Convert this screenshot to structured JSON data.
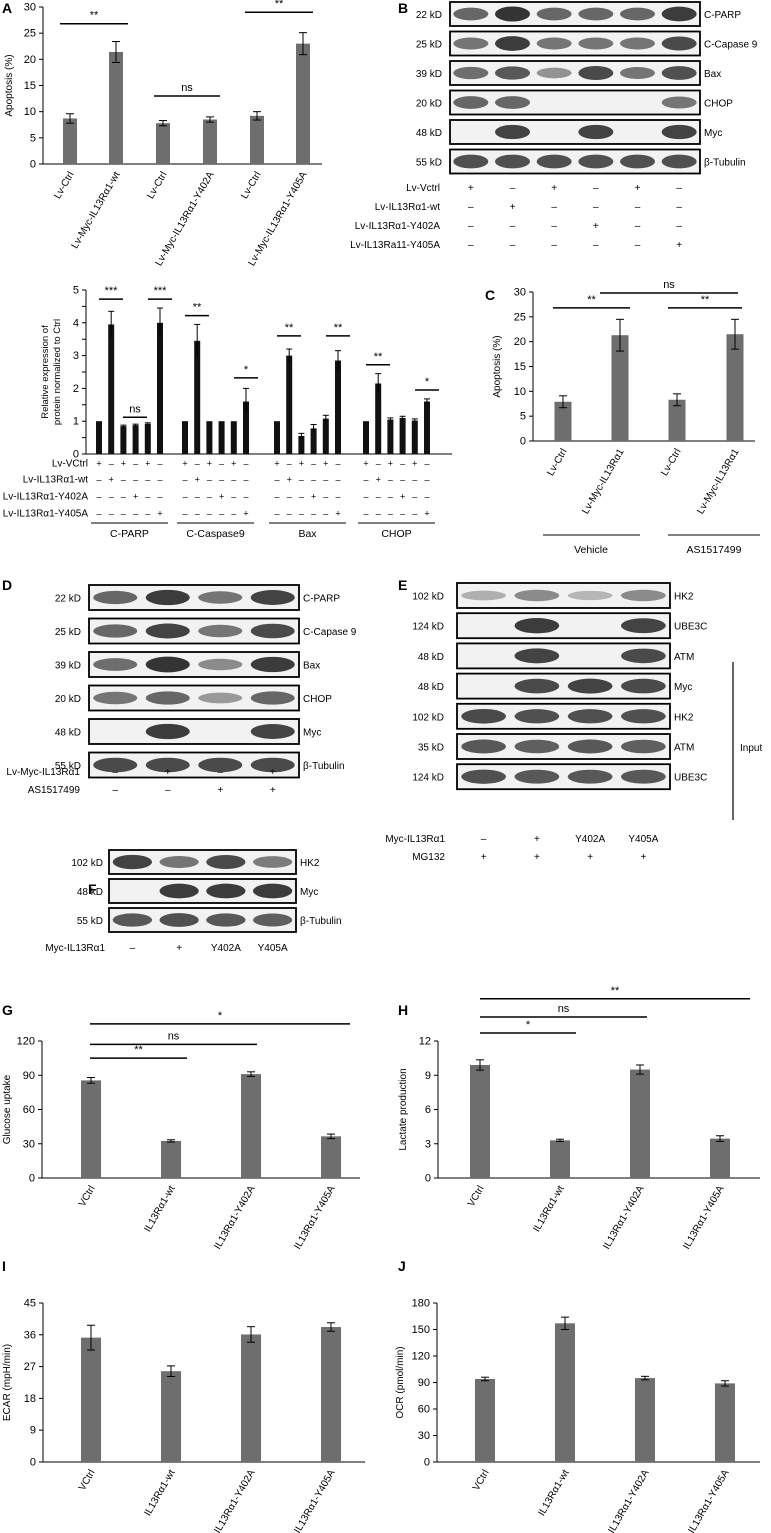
{
  "panels": {
    "A": "A",
    "B": "B",
    "C": "C",
    "D": "D",
    "E": "E",
    "F": "F",
    "G": "G",
    "H": "H",
    "I": "I",
    "J": "J"
  },
  "sig": {
    "A": [
      "**",
      "ns",
      "**"
    ],
    "C": [
      "**",
      "ns",
      "**"
    ],
    "G": [
      "**",
      "ns",
      "*"
    ],
    "H": [
      "*",
      "ns",
      "**"
    ],
    "A2": {
      "parp": [
        "***",
        "ns",
        "***"
      ],
      "casp": [
        "**",
        "*"
      ],
      "bax": [
        "**",
        "**"
      ],
      "chop": [
        "**",
        "*"
      ]
    }
  },
  "blotB": {
    "sizes": [
      "22 kD",
      "25 kD",
      "39 kD",
      "20 kD",
      "48 kD",
      "55 kD"
    ],
    "proteins": [
      "C-PARP",
      "C-Capase 9",
      "Bax",
      "CHOP",
      "Myc",
      "β-Tubulin"
    ],
    "rows": [
      {
        "label": "Lv-Vctrl",
        "marks": [
          "+",
          "–",
          "+",
          "–",
          "+",
          "–"
        ]
      },
      {
        "label": "Lv-IL13Rα1-wt",
        "marks": [
          "–",
          "+",
          "–",
          "–",
          "–",
          "–"
        ]
      },
      {
        "label": "Lv-IL13Rα1-Y402A",
        "marks": [
          "–",
          "–",
          "–",
          "+",
          "–",
          "–"
        ]
      },
      {
        "label": "Lv-IL13Ra11-Y405A",
        "marks": [
          "–",
          "–",
          "–",
          "–",
          "–",
          "+"
        ]
      }
    ]
  },
  "blotD": {
    "sizes": [
      "22 kD",
      "25 kD",
      "39 kD",
      "20 kD",
      "48 kD",
      "55 kD"
    ],
    "proteins": [
      "C-PARP",
      "C-Capase 9",
      "Bax",
      "CHOP",
      "Myc",
      "β-Tubulin"
    ],
    "rows": [
      {
        "label": "Lv-Myc-IL13Rα1",
        "marks": [
          "–",
          "+",
          "–",
          "+"
        ]
      },
      {
        "label": "AS1517499",
        "marks": [
          "–",
          "–",
          "+",
          "+"
        ]
      }
    ]
  },
  "blotE": {
    "sizes": [
      "102 kD",
      "124 kD",
      "48 kD",
      "48 kD",
      "102 kD",
      "35 kD",
      "124 kD"
    ],
    "proteins": [
      "HK2",
      "UBE3C",
      "ATM",
      "Myc",
      "HK2",
      "ATM",
      "UBE3C"
    ],
    "input": "Input",
    "rows": [
      {
        "label": "Myc-IL13Rα1",
        "marks": [
          "–",
          "+",
          "Y402A",
          "Y405A"
        ]
      },
      {
        "label": "MG132",
        "marks": [
          "+",
          "+",
          "+",
          "+"
        ]
      }
    ]
  },
  "blotF": {
    "sizes": [
      "102 kD",
      "48 kD",
      "55 kD"
    ],
    "proteins": [
      "HK2",
      "Myc",
      "β-Tubulin"
    ],
    "rows": [
      {
        "label": "Myc-IL13Rα1",
        "marks": [
          "–",
          "+",
          "Y402A",
          "Y405A"
        ]
      }
    ]
  },
  "chart_data": [
    {
      "panel": "A",
      "type": "bar",
      "ylabel": "Apoptosis (%)",
      "ylim": [
        0,
        30
      ],
      "ticks": [
        0,
        5,
        10,
        15,
        20,
        25,
        30
      ],
      "categories": [
        "Lv-Ctrl",
        "Lv-Myc-IL13Rα1-wt",
        "Lv-Ctrl",
        "Lv-Myc-IL13Rα1-Y402A",
        "Lv-Ctrl",
        "Lv-Myc-IL13Rα1-Y405A"
      ],
      "values": [
        8.7,
        21.4,
        7.8,
        8.5,
        9.2,
        23.0
      ],
      "errors": [
        0.9,
        2.0,
        0.5,
        0.5,
        0.8,
        2.1
      ],
      "color": "#6e6e6e"
    },
    {
      "panel": "A2",
      "type": "bar",
      "ylabel": "Relative expression of protein normalized to Ctrl",
      "ylim": [
        0,
        5
      ],
      "ticks": [
        0,
        0.5,
        1,
        1.5,
        2,
        2.5,
        3,
        3.5,
        4,
        4.5,
        5
      ],
      "groups": [
        "C-PARP",
        "C-Caspase9",
        "Bax",
        "CHOP"
      ],
      "treatment_labels": [
        "Lv-VCtrl",
        "Lv-IL13Rα1-wt",
        "Lv-IL13Rα1-Y402A",
        "Lv-IL13Rα1-Y405A"
      ],
      "treatment_marks": [
        [
          "+",
          "–",
          "+",
          "–",
          "+",
          "–"
        ],
        [
          "–",
          "+",
          "–",
          "–",
          "–",
          "–"
        ],
        [
          "–",
          "–",
          "–",
          "+",
          "–",
          "–"
        ],
        [
          "–",
          "–",
          "–",
          "–",
          "–",
          "+"
        ]
      ],
      "values": [
        [
          1,
          3.95,
          0.85,
          0.88,
          0.92,
          4.0
        ],
        [
          1,
          3.45,
          1,
          1,
          1,
          1.6
        ],
        [
          1,
          3.0,
          0.55,
          0.78,
          1.08,
          2.85
        ],
        [
          1,
          2.15,
          1.05,
          1.1,
          1.02,
          1.6
        ]
      ],
      "errors": [
        [
          0,
          0.4,
          0.03,
          0.03,
          0.03,
          0.45
        ],
        [
          0,
          0.5,
          0,
          0,
          0,
          0.4
        ],
        [
          0,
          0.2,
          0.08,
          0.12,
          0.1,
          0.3
        ],
        [
          0,
          0.3,
          0.05,
          0.05,
          0.05,
          0.08
        ]
      ],
      "color": "#111111"
    },
    {
      "panel": "C",
      "type": "bar",
      "ylabel": "Apoptosis (%)",
      "ylim": [
        0,
        30
      ],
      "ticks": [
        0,
        5,
        10,
        15,
        20,
        25,
        30
      ],
      "categories": [
        "Lv-Ctrl",
        "Lv-Myc-IL13Rα1",
        "Lv-Ctrl",
        "Lv-Myc-IL13Rα1"
      ],
      "values": [
        7.9,
        21.3,
        8.3,
        21.5
      ],
      "errors": [
        1.2,
        3.2,
        1.2,
        3.0
      ],
      "groups": [
        "Vehicle",
        "AS1517499"
      ],
      "color": "#6e6e6e"
    },
    {
      "panel": "G",
      "type": "bar",
      "ylabel": "Glucose uptake",
      "ylim": [
        0,
        120
      ],
      "ticks": [
        0,
        30,
        60,
        90,
        120
      ],
      "categories": [
        "VCtrl",
        "IL13Rα1-wt",
        "IL13Rα1-Y402A",
        "IL13Rα1-Y405A"
      ],
      "values": [
        85.5,
        32.5,
        91,
        36.5
      ],
      "errors": [
        2.5,
        1,
        2,
        2
      ],
      "color": "#6e6e6e"
    },
    {
      "panel": "H",
      "type": "bar",
      "ylabel": "Lactate production",
      "ylim": [
        0,
        12
      ],
      "ticks": [
        0,
        3,
        6,
        9,
        12
      ],
      "categories": [
        "VCtrl",
        "IL13Rα1-wt",
        "IL13Rα1-Y402A",
        "IL13Rα1-Y405A"
      ],
      "values": [
        9.9,
        3.3,
        9.5,
        3.45
      ],
      "errors": [
        0.45,
        0.1,
        0.4,
        0.25
      ],
      "color": "#6e6e6e"
    },
    {
      "panel": "I",
      "type": "bar",
      "ylabel": "ECAR (mpH/min)",
      "ylim": [
        0,
        45
      ],
      "ticks": [
        0,
        9,
        18,
        27,
        36,
        45
      ],
      "categories": [
        "VCtrl",
        "IL13Rα1-wt",
        "IL13Rα1-Y402A",
        "IL13Rα1-Y405A"
      ],
      "values": [
        35.2,
        25.7,
        36.1,
        38.2
      ],
      "errors": [
        3.5,
        1.5,
        2.2,
        1.2
      ],
      "color": "#6e6e6e"
    },
    {
      "panel": "J",
      "type": "bar",
      "ylabel": "OCR (pmol/min)",
      "ylim": [
        0,
        180
      ],
      "ticks": [
        0,
        30,
        60,
        90,
        120,
        150,
        180
      ],
      "categories": [
        "VCtrl",
        "IL13Rα1-wt",
        "IL13Rα1-Y402A",
        "IL13Rα1-Y405A"
      ],
      "values": [
        94,
        157,
        95,
        89
      ],
      "errors": [
        2,
        7,
        2,
        3
      ],
      "color": "#6e6e6e"
    }
  ]
}
